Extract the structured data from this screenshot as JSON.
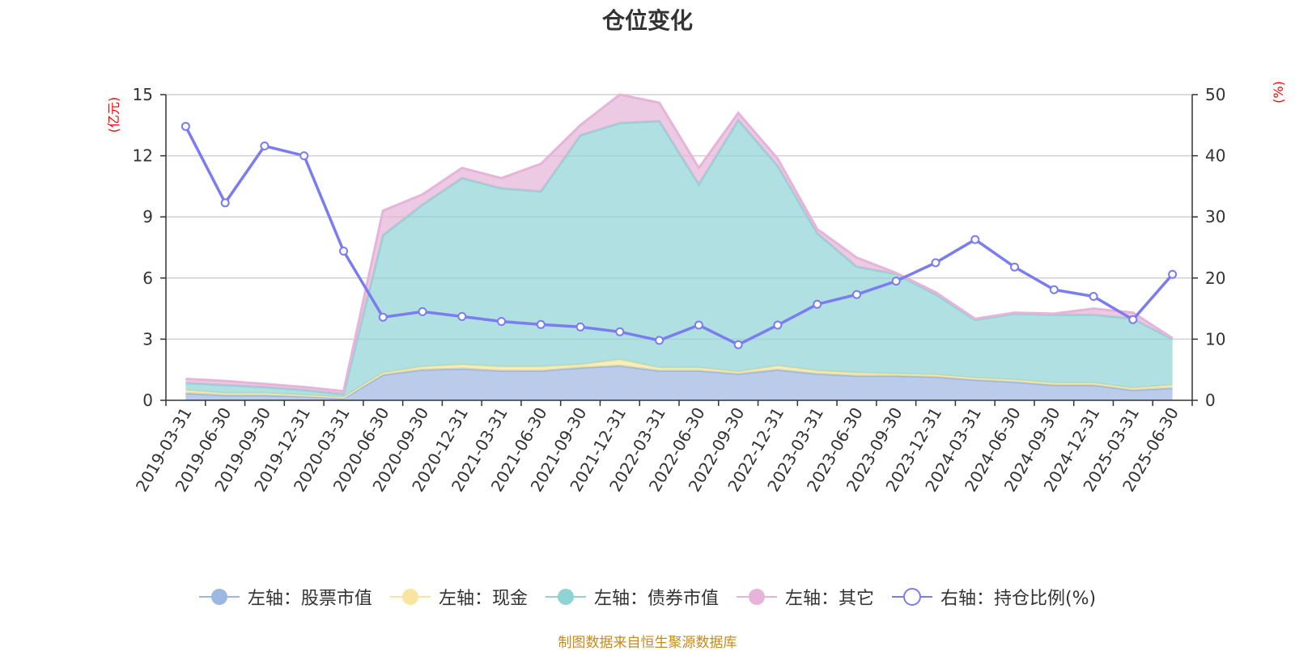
{
  "title": "仓位变化",
  "footer": "制图数据来自恒生聚源数据库",
  "chart_data": {
    "type": "area",
    "categories": [
      "2019-03-31",
      "2019-06-30",
      "2019-09-30",
      "2019-12-31",
      "2020-03-31",
      "2020-06-30",
      "2020-09-30",
      "2020-12-31",
      "2021-03-31",
      "2021-06-30",
      "2021-09-30",
      "2021-12-31",
      "2022-03-31",
      "2022-06-30",
      "2022-09-30",
      "2022-12-31",
      "2023-03-31",
      "2023-06-30",
      "2023-09-30",
      "2023-12-31",
      "2024-03-31",
      "2024-06-30",
      "2024-09-30",
      "2024-12-31",
      "2025-03-31",
      "2025-06-30"
    ],
    "y_left": {
      "label": "(亿元)",
      "ticks": [
        "0",
        "3",
        "6",
        "9",
        "12",
        "15"
      ],
      "ylim": [
        0,
        15
      ]
    },
    "y_right": {
      "label": "(%)",
      "ticks": [
        "0",
        "10",
        "20",
        "30",
        "40",
        "50"
      ],
      "ylim": [
        0,
        50
      ]
    },
    "series": [
      {
        "name": "左轴：股票市值",
        "axis": "left",
        "kind": "stacked-area",
        "color": "#9cb7e0",
        "values": [
          0.35,
          0.25,
          0.25,
          0.2,
          0.1,
          1.25,
          1.5,
          1.55,
          1.45,
          1.45,
          1.6,
          1.7,
          1.45,
          1.45,
          1.3,
          1.5,
          1.3,
          1.2,
          1.2,
          1.15,
          1.0,
          0.9,
          0.75,
          0.75,
          0.5,
          0.6
        ]
      },
      {
        "name": "左轴：现金",
        "axis": "left",
        "kind": "stacked-area",
        "color": "#f7e5a0",
        "values": [
          0.15,
          0.1,
          0.1,
          0.05,
          0.05,
          0.1,
          0.15,
          0.2,
          0.2,
          0.2,
          0.15,
          0.3,
          0.15,
          0.15,
          0.1,
          0.2,
          0.15,
          0.15,
          0.1,
          0.1,
          0.1,
          0.1,
          0.1,
          0.1,
          0.1,
          0.15
        ]
      },
      {
        "name": "左轴：债券市值",
        "axis": "left",
        "kind": "stacked-area",
        "color": "#8fd3d4",
        "values": [
          0.35,
          0.4,
          0.3,
          0.25,
          0.15,
          6.75,
          7.95,
          9.15,
          8.75,
          8.6,
          11.25,
          11.6,
          12.1,
          9.0,
          12.35,
          9.8,
          6.75,
          5.2,
          4.9,
          3.95,
          2.85,
          3.25,
          3.35,
          3.35,
          3.4,
          2.25
        ]
      },
      {
        "name": "左轴：其它",
        "axis": "left",
        "kind": "stacked-area",
        "color": "#e6b3d9",
        "values": [
          0.2,
          0.2,
          0.15,
          0.15,
          0.15,
          1.2,
          0.5,
          0.5,
          0.5,
          1.35,
          0.5,
          1.4,
          0.9,
          0.8,
          0.35,
          0.35,
          0.2,
          0.45,
          0.05,
          0.1,
          0.05,
          0.05,
          0.05,
          0.3,
          0.3,
          0.05
        ]
      },
      {
        "name": "右轴：持仓比例(%)",
        "axis": "right",
        "kind": "line",
        "color": "#7b7cf0",
        "values": [
          44.8,
          32.3,
          41.6,
          40.0,
          24.4,
          13.6,
          14.5,
          13.7,
          12.9,
          12.4,
          12.0,
          11.2,
          9.8,
          12.3,
          9.1,
          12.3,
          15.7,
          17.3,
          19.5,
          22.5,
          26.3,
          21.8,
          18.1,
          17.0,
          13.2,
          20.6
        ]
      }
    ]
  }
}
